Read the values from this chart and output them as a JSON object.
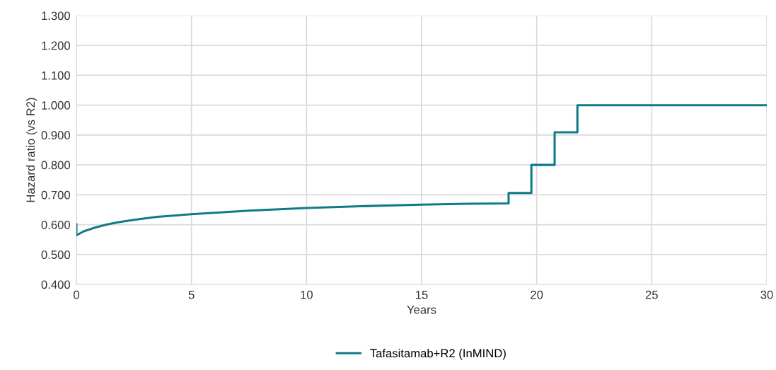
{
  "chart_data": {
    "type": "line",
    "xlabel": "Years",
    "ylabel": "Hazard ratio (vs R2)",
    "xlim": [
      0,
      30
    ],
    "xticks": [
      0,
      5,
      10,
      15,
      20,
      25,
      30
    ],
    "ylim": [
      0.4,
      1.3
    ],
    "yticks": [
      {
        "value": 0.4,
        "label": "0.400"
      },
      {
        "value": 0.5,
        "label": "0.500"
      },
      {
        "value": 0.6,
        "label": "0.600"
      },
      {
        "value": 0.7,
        "label": "0.700"
      },
      {
        "value": 0.8,
        "label": "0.800"
      },
      {
        "value": 0.9,
        "label": "0.900"
      },
      {
        "value": 1.0,
        "label": "1.000"
      },
      {
        "value": 1.1,
        "label": "1.100"
      },
      {
        "value": 1.2,
        "label": "1.200"
      },
      {
        "value": 1.3,
        "label": "1.300"
      }
    ],
    "grid": true,
    "legend": "bottom",
    "marker": "none",
    "line_style": "solid",
    "series": [
      {
        "name": "Tafasitamab+R2 (InMIND)",
        "color": "#0e7c86",
        "x": [
          0,
          0,
          0.3,
          0.8,
          1.3,
          1.8,
          2.5,
          3.5,
          5,
          7.5,
          10,
          12.5,
          15,
          17,
          18.78,
          18.78,
          19.77,
          19.77,
          20.78,
          20.78,
          21.77,
          21.77,
          30
        ],
        "values": [
          0.601,
          0.564,
          0.577,
          0.59,
          0.6,
          0.608,
          0.616,
          0.626,
          0.635,
          0.647,
          0.656,
          0.662,
          0.667,
          0.67,
          0.671,
          0.706,
          0.706,
          0.8,
          0.8,
          0.909,
          0.909,
          1.0,
          1.0
        ]
      }
    ]
  }
}
